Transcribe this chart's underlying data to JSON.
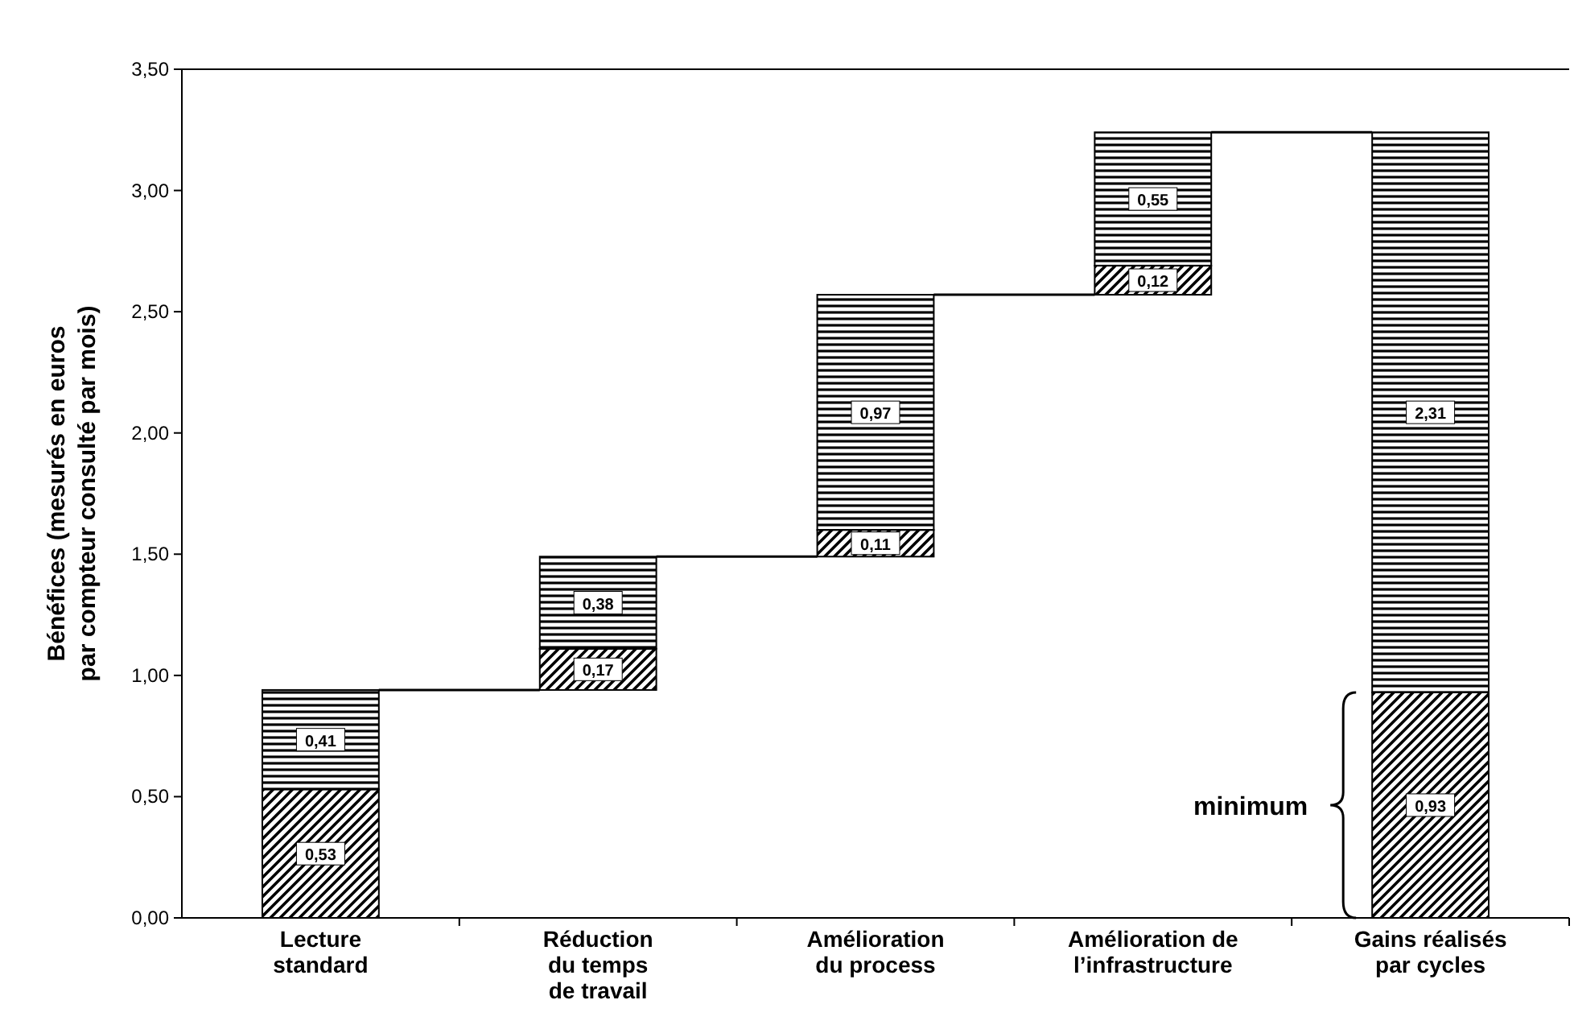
{
  "chart_data": {
    "type": "bar",
    "ylabel": "Bénéfices (mesurés en euros\npar compteur consulté par mois)",
    "categories": [
      "Lecture\nstandard",
      "Réduction\ndu temps\nde travail",
      "Amélioration\ndu process",
      "Amélioration de\nl’infrastructure",
      "Gains réalisés\npar cycles"
    ],
    "series": [
      {
        "color": "#000000",
        "values": [
          0.53,
          0.17,
          0.11,
          0.12,
          0.93
        ],
        "base": [
          0,
          0.94,
          1.49,
          2.57,
          0
        ],
        "value_labels": [
          "0,53",
          "0,17",
          "0,11",
          "0,12",
          "0,93"
        ]
      },
      {
        "color": "#000000",
        "values": [
          0.41,
          0.38,
          0.97,
          0.55,
          2.31
        ],
        "base": [
          0.53,
          1.11,
          1.6,
          2.69,
          0.93
        ],
        "value_labels": [
          "0,41",
          "0,38",
          "0,97",
          "0,55",
          "2,31"
        ]
      }
    ],
    "ylim": [
      0,
      3.5
    ],
    "yticks": [
      {
        "value": 0,
        "label": "0,00"
      },
      {
        "value": 0.5,
        "label": "0,50"
      },
      {
        "value": 1,
        "label": "1,00"
      },
      {
        "value": 1.5,
        "label": "1,50"
      },
      {
        "value": 2,
        "label": "2,00"
      },
      {
        "value": 2.5,
        "label": "2,50"
      },
      {
        "value": 3,
        "label": "3,00"
      },
      {
        "value": 3.5,
        "label": "3,50"
      }
    ],
    "annotations": [
      "minimum"
    ]
  }
}
